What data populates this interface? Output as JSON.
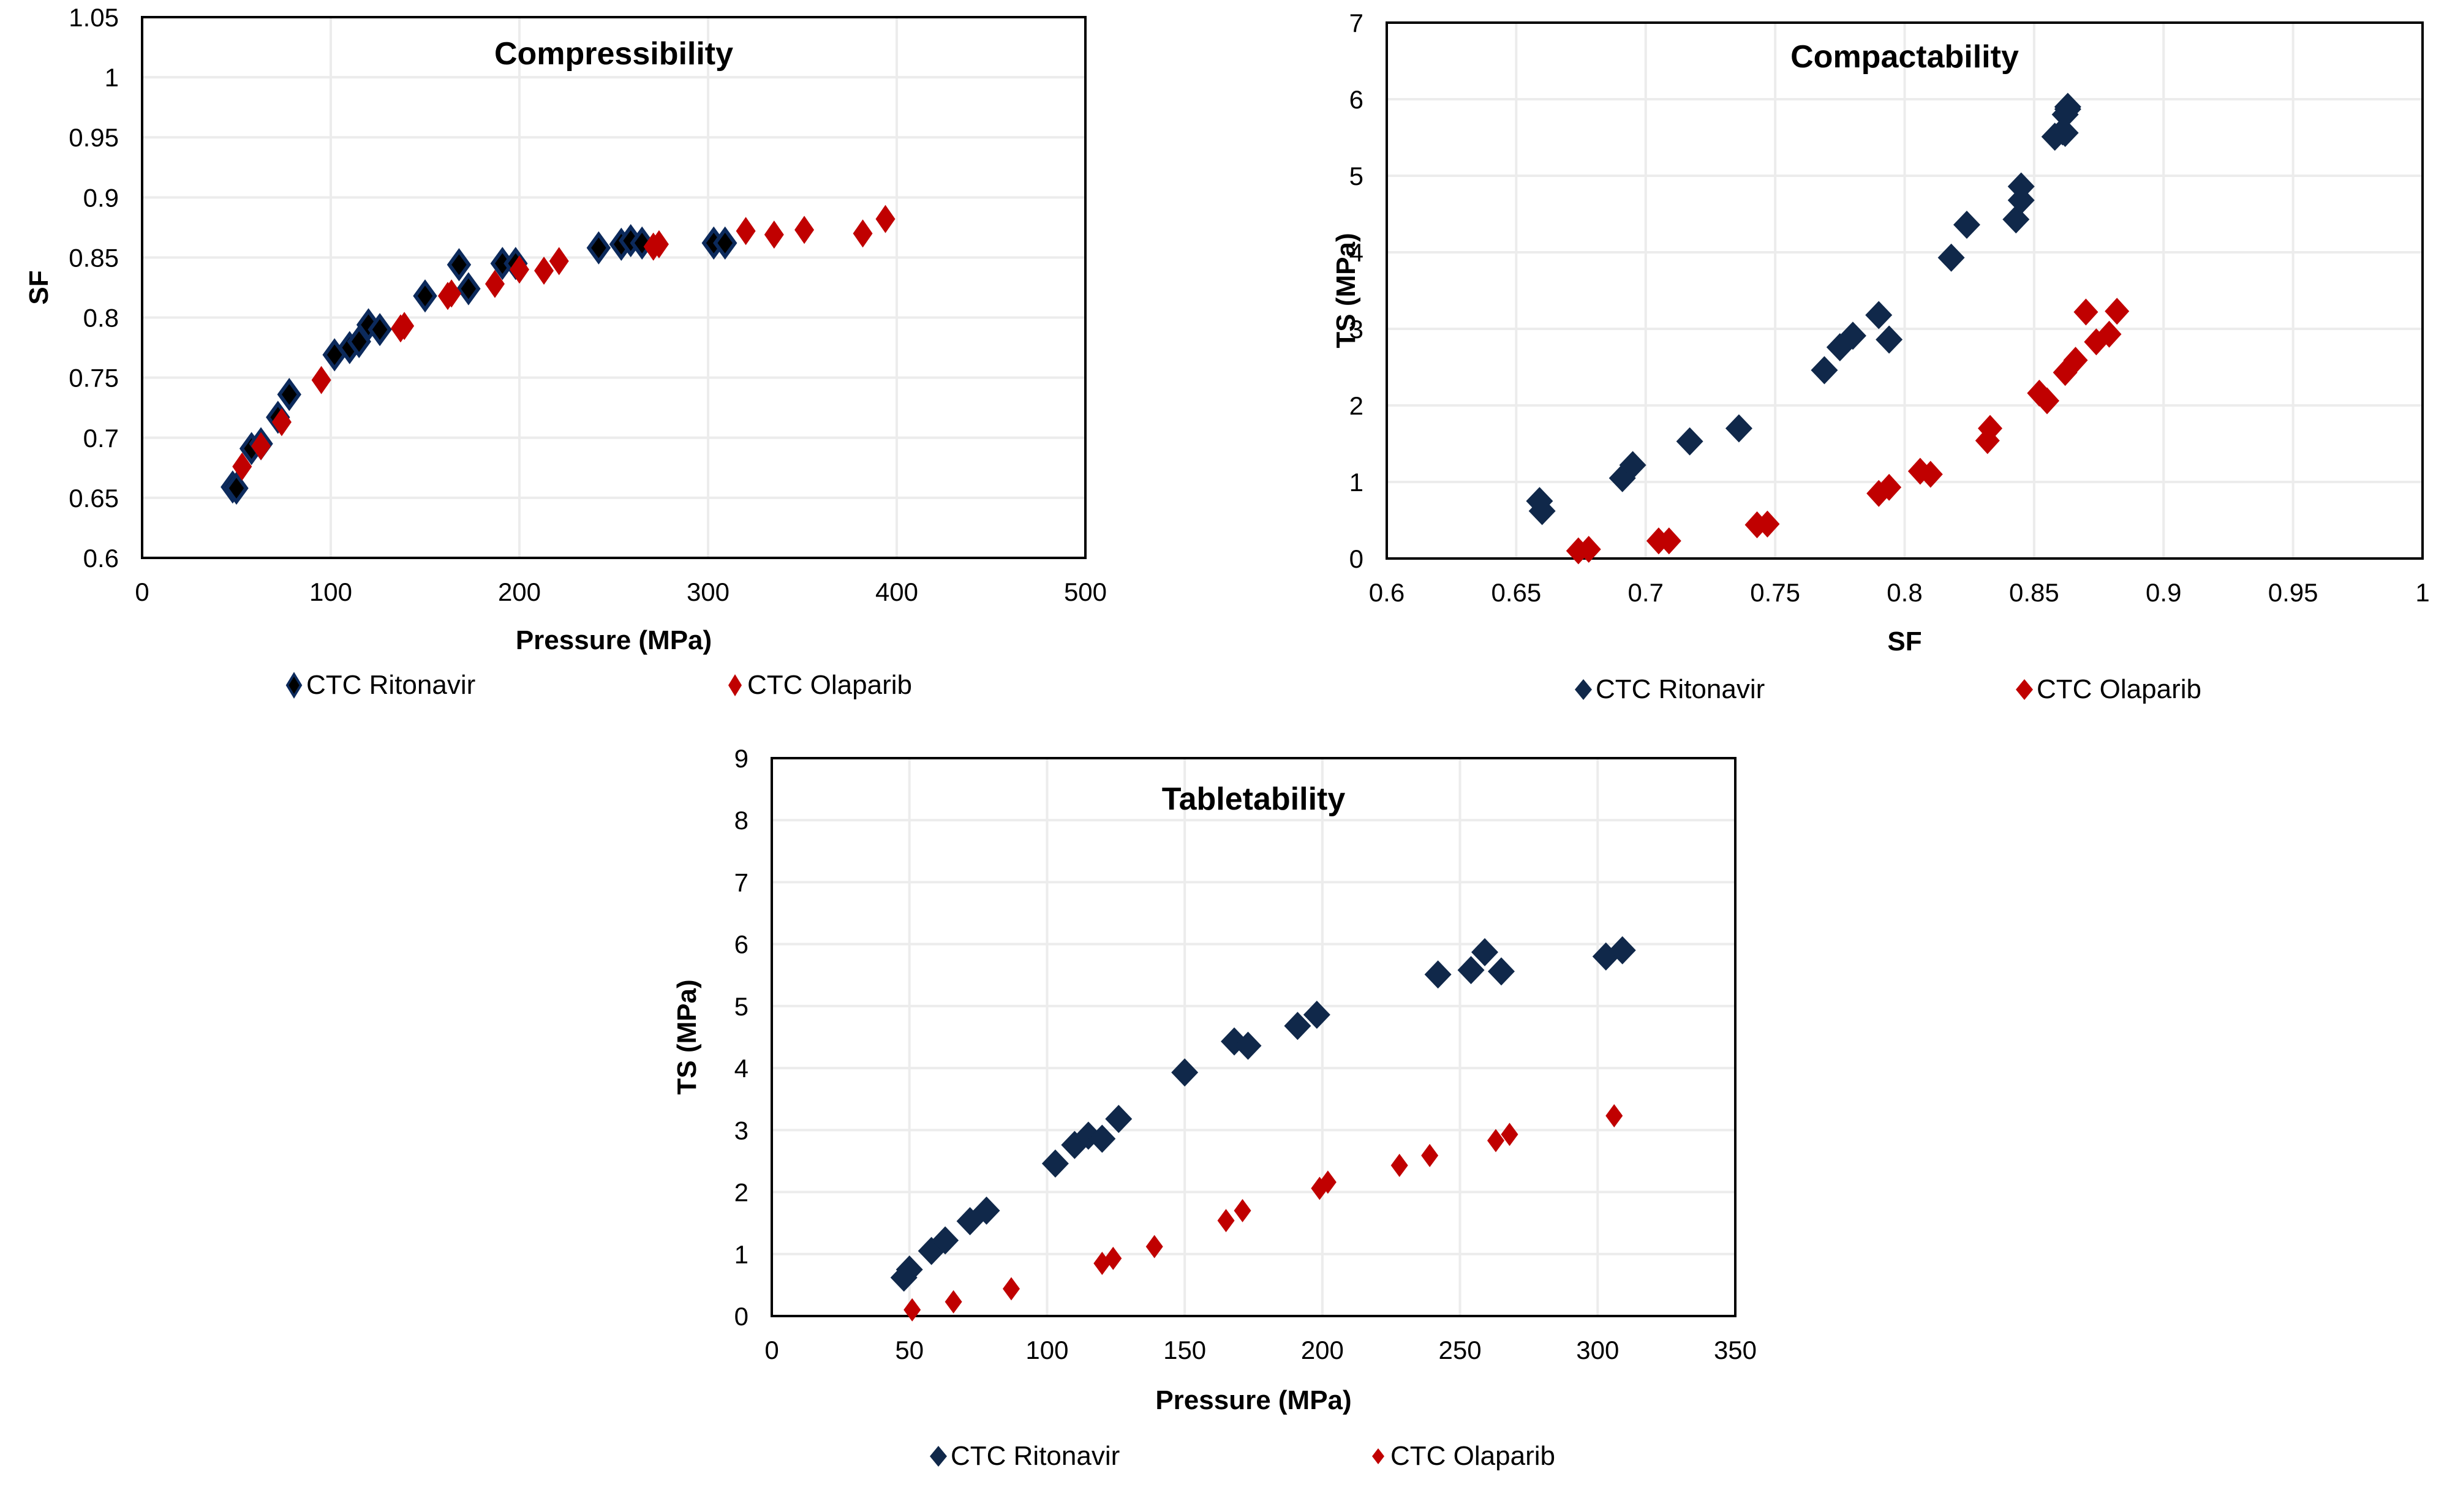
{
  "colors": {
    "ritonavir_fill": "#10284a",
    "ritonavir_fill_compress": "#000000",
    "ritonavir_stroke_compress": "#0c2a5c",
    "olaparib": "#c00000",
    "grid": "#ececec",
    "frame": "#000000"
  },
  "chart_data": [
    {
      "id": "compressibility",
      "type": "scatter",
      "title": "Compressibility",
      "xlabel": "Pressure (MPa)",
      "ylabel": "SF",
      "xlim": [
        0,
        500
      ],
      "ylim": [
        0.6,
        1.05
      ],
      "xticks": [
        0,
        100,
        200,
        300,
        400,
        500
      ],
      "xtick_labels": [
        "0",
        "100",
        "200",
        "300",
        "400",
        "500"
      ],
      "yticks": [
        0.6,
        0.65,
        0.7,
        0.75,
        0.8,
        0.85,
        0.9,
        0.95,
        1.0,
        1.05
      ],
      "ytick_labels": [
        "0.6",
        "0.65",
        "0.7",
        "0.75",
        "0.8",
        "0.85",
        "0.9",
        "0.95",
        "1",
        "1.05"
      ],
      "grid": true,
      "legend": "bottom",
      "series": [
        {
          "name": "CTC Ritonavir",
          "x": [
            48,
            50,
            58,
            63,
            72,
            78,
            102,
            110,
            115,
            120,
            126,
            150,
            168,
            173,
            191,
            198,
            242,
            254,
            259,
            265,
            303,
            309
          ],
          "y": [
            0.659,
            0.658,
            0.691,
            0.695,
            0.717,
            0.736,
            0.769,
            0.775,
            0.78,
            0.794,
            0.79,
            0.818,
            0.844,
            0.824,
            0.845,
            0.845,
            0.858,
            0.861,
            0.864,
            0.862,
            0.862,
            0.862
          ]
        },
        {
          "name": "CTC Olaparib",
          "x": [
            53,
            63,
            74,
            95,
            137,
            139,
            162,
            164,
            187,
            200,
            213,
            221,
            271,
            274,
            320,
            335,
            351,
            382,
            394
          ],
          "y": [
            0.676,
            0.693,
            0.713,
            0.748,
            0.791,
            0.793,
            0.818,
            0.82,
            0.828,
            0.84,
            0.839,
            0.847,
            0.859,
            0.861,
            0.872,
            0.869,
            0.873,
            0.87,
            0.882
          ]
        }
      ]
    },
    {
      "id": "compactability",
      "type": "scatter",
      "title": "Compactability",
      "xlabel": "SF",
      "ylabel": "TS (MPa)",
      "xlim": [
        0.6,
        1.0
      ],
      "ylim": [
        0,
        7
      ],
      "xticks": [
        0.6,
        0.65,
        0.7,
        0.75,
        0.8,
        0.85,
        0.9,
        0.95,
        1.0
      ],
      "xtick_labels": [
        "0.6",
        "0.65",
        "0.7",
        "0.75",
        "0.8",
        "0.85",
        "0.9",
        "0.95",
        "1"
      ],
      "yticks": [
        0,
        1,
        2,
        3,
        4,
        5,
        6,
        7
      ],
      "ytick_labels": [
        "0",
        "1",
        "2",
        "3",
        "4",
        "5",
        "6",
        "7"
      ],
      "grid": true,
      "legend": "bottom",
      "series": [
        {
          "name": "CTC Ritonavir",
          "x": [
            0.659,
            0.66,
            0.691,
            0.695,
            0.717,
            0.736,
            0.769,
            0.775,
            0.78,
            0.794,
            0.79,
            0.818,
            0.843,
            0.824,
            0.845,
            0.845,
            0.858,
            0.861,
            0.863,
            0.862,
            0.862,
            0.863
          ],
          "y": [
            0.75,
            0.62,
            1.05,
            1.22,
            1.53,
            1.7,
            2.46,
            2.76,
            2.91,
            2.86,
            3.18,
            3.93,
            4.43,
            4.36,
            4.68,
            4.86,
            5.51,
            5.58,
            5.87,
            5.56,
            5.8,
            5.9
          ]
        },
        {
          "name": "CTC Olaparib",
          "x": [
            0.674,
            0.678,
            0.705,
            0.709,
            0.743,
            0.747,
            0.79,
            0.794,
            0.806,
            0.81,
            0.832,
            0.833,
            0.852,
            0.855,
            0.862,
            0.866,
            0.87,
            0.874,
            0.879,
            0.882
          ],
          "y": [
            0.1,
            0.12,
            0.23,
            0.23,
            0.44,
            0.45,
            0.85,
            0.93,
            1.14,
            1.1,
            1.54,
            1.7,
            2.16,
            2.06,
            2.43,
            2.59,
            3.22,
            2.83,
            2.93,
            3.23
          ]
        }
      ]
    },
    {
      "id": "tabletability",
      "type": "scatter",
      "title": "Tabletability",
      "xlabel": "Pressure (MPa)",
      "ylabel": "TS (MPa)",
      "xlim": [
        0,
        350
      ],
      "ylim": [
        0,
        9
      ],
      "xticks": [
        0,
        50,
        100,
        150,
        200,
        250,
        300,
        350
      ],
      "xtick_labels": [
        "0",
        "50",
        "100",
        "150",
        "200",
        "250",
        "300",
        "350"
      ],
      "yticks": [
        0,
        1,
        2,
        3,
        4,
        5,
        6,
        7,
        8,
        9
      ],
      "ytick_labels": [
        "0",
        "1",
        "2",
        "3",
        "4",
        "5",
        "6",
        "7",
        "8",
        "9"
      ],
      "grid": true,
      "legend": "bottom",
      "series": [
        {
          "name": "CTC Ritonavir",
          "x": [
            48,
            50,
            58,
            63,
            72,
            78,
            103,
            110,
            115,
            120,
            126,
            150,
            168,
            173,
            191,
            198,
            242,
            254,
            259,
            265,
            303,
            309
          ],
          "y": [
            0.62,
            0.75,
            1.05,
            1.22,
            1.53,
            1.7,
            2.46,
            2.76,
            2.91,
            2.86,
            3.18,
            3.93,
            4.43,
            4.36,
            4.68,
            4.86,
            5.51,
            5.58,
            5.87,
            5.56,
            5.8,
            5.9
          ]
        },
        {
          "name": "CTC Olaparib",
          "x": [
            51,
            66,
            87,
            120,
            124,
            139,
            165,
            171,
            199,
            202,
            228,
            239,
            263,
            268,
            306
          ],
          "y": [
            0.1,
            0.23,
            0.44,
            0.85,
            0.93,
            1.12,
            1.54,
            1.7,
            2.06,
            2.16,
            2.43,
            2.59,
            2.83,
            2.93,
            3.23
          ]
        }
      ]
    }
  ]
}
